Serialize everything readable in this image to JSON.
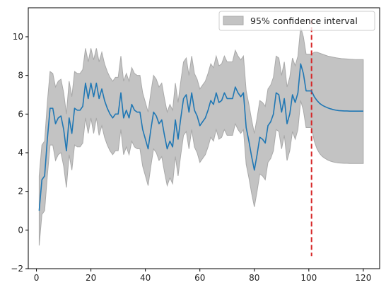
{
  "chart_data": {
    "type": "line",
    "title": "",
    "xlabel": "",
    "ylabel": "",
    "xlim": [
      -3,
      126
    ],
    "ylim": [
      -2,
      11.5
    ],
    "xticks": [
      0,
      20,
      40,
      60,
      80,
      100,
      120
    ],
    "yticks": [
      -2,
      0,
      2,
      4,
      6,
      8,
      10
    ],
    "grid": false,
    "legend_position": "top-right",
    "legend": [
      "95% confidence interval"
    ],
    "colors": {
      "series": "#1f77b4",
      "band": "#c3c3c3",
      "band_edge": "#a9a9a9",
      "vline": "#d62728"
    },
    "series": [
      {
        "values": [
          [
            1,
            1.0
          ],
          [
            2,
            2.6
          ],
          [
            3,
            2.8
          ],
          [
            4,
            4.7
          ],
          [
            5,
            6.3
          ],
          [
            6,
            6.3
          ],
          [
            7,
            5.5
          ],
          [
            8,
            5.8
          ],
          [
            9,
            5.9
          ],
          [
            10,
            5.2
          ],
          [
            11,
            4.1
          ],
          [
            12,
            5.8
          ],
          [
            13,
            5.0
          ],
          [
            14,
            6.3
          ],
          [
            15,
            6.2
          ],
          [
            16,
            6.2
          ],
          [
            17,
            6.4
          ],
          [
            18,
            7.6
          ],
          [
            19,
            6.8
          ],
          [
            20,
            7.6
          ],
          [
            21,
            6.9
          ],
          [
            22,
            7.6
          ],
          [
            23,
            6.8
          ],
          [
            24,
            7.3
          ],
          [
            25,
            6.7
          ],
          [
            26,
            6.3
          ],
          [
            27,
            6.0
          ],
          [
            28,
            5.8
          ],
          [
            29,
            6.0
          ],
          [
            30,
            6.0
          ],
          [
            31,
            7.1
          ],
          [
            32,
            5.8
          ],
          [
            33,
            6.2
          ],
          [
            34,
            5.8
          ],
          [
            35,
            6.5
          ],
          [
            36,
            6.2
          ],
          [
            37,
            6.1
          ],
          [
            38,
            6.1
          ],
          [
            39,
            5.2
          ],
          [
            40,
            4.7
          ],
          [
            41,
            4.2
          ],
          [
            42,
            5.2
          ],
          [
            43,
            6.1
          ],
          [
            44,
            5.9
          ],
          [
            45,
            5.5
          ],
          [
            46,
            5.7
          ],
          [
            47,
            4.9
          ],
          [
            48,
            4.2
          ],
          [
            49,
            4.6
          ],
          [
            50,
            4.3
          ],
          [
            51,
            5.7
          ],
          [
            52,
            4.7
          ],
          [
            53,
            5.8
          ],
          [
            54,
            6.8
          ],
          [
            55,
            7.0
          ],
          [
            56,
            6.1
          ],
          [
            57,
            7.1
          ],
          [
            58,
            6.2
          ],
          [
            59,
            5.9
          ],
          [
            60,
            5.4
          ],
          [
            61,
            5.6
          ],
          [
            62,
            5.8
          ],
          [
            63,
            6.2
          ],
          [
            64,
            6.7
          ],
          [
            65,
            6.5
          ],
          [
            66,
            7.1
          ],
          [
            67,
            6.6
          ],
          [
            68,
            6.7
          ],
          [
            69,
            7.1
          ],
          [
            70,
            6.8
          ],
          [
            71,
            6.8
          ],
          [
            72,
            6.8
          ],
          [
            73,
            7.4
          ],
          [
            74,
            7.1
          ],
          [
            75,
            6.9
          ],
          [
            76,
            7.1
          ],
          [
            77,
            5.3
          ],
          [
            78,
            4.6
          ],
          [
            79,
            3.8
          ],
          [
            80,
            3.1
          ],
          [
            81,
            3.9
          ],
          [
            82,
            4.8
          ],
          [
            83,
            4.7
          ],
          [
            84,
            4.5
          ],
          [
            85,
            5.4
          ],
          [
            86,
            5.6
          ],
          [
            87,
            6.0
          ],
          [
            88,
            7.1
          ],
          [
            89,
            7.0
          ],
          [
            90,
            6.1
          ],
          [
            91,
            6.8
          ],
          [
            92,
            5.5
          ],
          [
            93,
            6.0
          ],
          [
            94,
            7.0
          ],
          [
            95,
            6.6
          ],
          [
            96,
            7.1
          ],
          [
            97,
            8.6
          ],
          [
            98,
            8.1
          ],
          [
            99,
            7.2
          ],
          [
            100,
            7.2
          ],
          [
            101,
            7.2
          ],
          [
            102,
            6.9
          ],
          [
            103,
            6.7
          ],
          [
            104,
            6.55
          ],
          [
            105,
            6.45
          ],
          [
            106,
            6.38
          ],
          [
            107,
            6.32
          ],
          [
            108,
            6.27
          ],
          [
            109,
            6.23
          ],
          [
            110,
            6.2
          ],
          [
            111,
            6.18
          ],
          [
            112,
            6.17
          ],
          [
            113,
            6.16
          ],
          [
            114,
            6.16
          ],
          [
            115,
            6.15
          ],
          [
            116,
            6.15
          ],
          [
            117,
            6.15
          ],
          [
            118,
            6.15
          ],
          [
            119,
            6.15
          ],
          [
            120,
            6.15
          ]
        ]
      }
    ],
    "confidence_interval": {
      "label": "95% confidence interval",
      "upper": [
        [
          1,
          2.8
        ],
        [
          2,
          4.4
        ],
        [
          3,
          4.6
        ],
        [
          4,
          6.6
        ],
        [
          5,
          8.2
        ],
        [
          6,
          8.1
        ],
        [
          7,
          7.4
        ],
        [
          8,
          7.7
        ],
        [
          9,
          7.8
        ],
        [
          10,
          7.1
        ],
        [
          11,
          6.0
        ],
        [
          12,
          7.7
        ],
        [
          13,
          6.9
        ],
        [
          14,
          8.2
        ],
        [
          15,
          8.1
        ],
        [
          16,
          8.1
        ],
        [
          17,
          8.3
        ],
        [
          18,
          9.4
        ],
        [
          19,
          8.7
        ],
        [
          20,
          9.4
        ],
        [
          21,
          8.8
        ],
        [
          22,
          9.4
        ],
        [
          23,
          8.7
        ],
        [
          24,
          9.2
        ],
        [
          25,
          8.6
        ],
        [
          26,
          8.2
        ],
        [
          27,
          7.9
        ],
        [
          28,
          7.7
        ],
        [
          29,
          7.9
        ],
        [
          30,
          7.9
        ],
        [
          31,
          9.0
        ],
        [
          32,
          7.7
        ],
        [
          33,
          8.1
        ],
        [
          34,
          7.7
        ],
        [
          35,
          8.4
        ],
        [
          36,
          8.1
        ],
        [
          37,
          8.0
        ],
        [
          38,
          8.0
        ],
        [
          39,
          7.1
        ],
        [
          40,
          6.6
        ],
        [
          41,
          6.1
        ],
        [
          42,
          7.1
        ],
        [
          43,
          8.0
        ],
        [
          44,
          7.8
        ],
        [
          45,
          7.4
        ],
        [
          46,
          7.6
        ],
        [
          47,
          6.8
        ],
        [
          48,
          6.1
        ],
        [
          49,
          6.5
        ],
        [
          50,
          6.2
        ],
        [
          51,
          7.6
        ],
        [
          52,
          6.6
        ],
        [
          53,
          7.7
        ],
        [
          54,
          8.7
        ],
        [
          55,
          8.9
        ],
        [
          56,
          8.0
        ],
        [
          57,
          9.0
        ],
        [
          58,
          8.1
        ],
        [
          59,
          7.8
        ],
        [
          60,
          7.3
        ],
        [
          61,
          7.5
        ],
        [
          62,
          7.7
        ],
        [
          63,
          8.1
        ],
        [
          64,
          8.6
        ],
        [
          65,
          8.4
        ],
        [
          66,
          9.0
        ],
        [
          67,
          8.5
        ],
        [
          68,
          8.6
        ],
        [
          69,
          9.0
        ],
        [
          70,
          8.7
        ],
        [
          71,
          8.7
        ],
        [
          72,
          8.7
        ],
        [
          73,
          9.3
        ],
        [
          74,
          9.0
        ],
        [
          75,
          8.8
        ],
        [
          76,
          9.0
        ],
        [
          77,
          7.2
        ],
        [
          78,
          6.5
        ],
        [
          79,
          5.7
        ],
        [
          80,
          5.0
        ],
        [
          81,
          5.8
        ],
        [
          82,
          6.7
        ],
        [
          83,
          6.6
        ],
        [
          84,
          6.4
        ],
        [
          85,
          7.3
        ],
        [
          86,
          7.5
        ],
        [
          87,
          7.9
        ],
        [
          88,
          9.0
        ],
        [
          89,
          8.9
        ],
        [
          90,
          8.0
        ],
        [
          91,
          8.7
        ],
        [
          92,
          7.4
        ],
        [
          93,
          7.9
        ],
        [
          94,
          8.9
        ],
        [
          95,
          8.5
        ],
        [
          96,
          9.0
        ],
        [
          97,
          10.5
        ],
        [
          98,
          10.0
        ],
        [
          99,
          9.1
        ],
        [
          100,
          9.1
        ],
        [
          101,
          9.1
        ],
        [
          102,
          9.2
        ],
        [
          103,
          9.2
        ],
        [
          104,
          9.15
        ],
        [
          105,
          9.1
        ],
        [
          106,
          9.05
        ],
        [
          107,
          9.0
        ],
        [
          108,
          8.97
        ],
        [
          109,
          8.94
        ],
        [
          110,
          8.91
        ],
        [
          111,
          8.89
        ],
        [
          112,
          8.87
        ],
        [
          113,
          8.86
        ],
        [
          114,
          8.85
        ],
        [
          115,
          8.84
        ],
        [
          116,
          8.83
        ],
        [
          117,
          8.82
        ],
        [
          118,
          8.82
        ],
        [
          119,
          8.82
        ],
        [
          120,
          8.82
        ]
      ],
      "lower": [
        [
          1,
          -0.8
        ],
        [
          2,
          0.8
        ],
        [
          3,
          1.0
        ],
        [
          4,
          2.8
        ],
        [
          5,
          4.4
        ],
        [
          6,
          4.4
        ],
        [
          7,
          3.6
        ],
        [
          8,
          3.9
        ],
        [
          9,
          4.0
        ],
        [
          10,
          3.3
        ],
        [
          11,
          2.2
        ],
        [
          12,
          3.9
        ],
        [
          13,
          3.1
        ],
        [
          14,
          4.4
        ],
        [
          15,
          4.3
        ],
        [
          16,
          4.3
        ],
        [
          17,
          4.5
        ],
        [
          18,
          5.8
        ],
        [
          19,
          5.0
        ],
        [
          20,
          5.8
        ],
        [
          21,
          5.0
        ],
        [
          22,
          5.8
        ],
        [
          23,
          4.9
        ],
        [
          24,
          5.4
        ],
        [
          25,
          4.8
        ],
        [
          26,
          4.4
        ],
        [
          27,
          4.1
        ],
        [
          28,
          3.9
        ],
        [
          29,
          4.1
        ],
        [
          30,
          4.1
        ],
        [
          31,
          5.2
        ],
        [
          32,
          3.9
        ],
        [
          33,
          4.3
        ],
        [
          34,
          3.9
        ],
        [
          35,
          4.6
        ],
        [
          36,
          4.3
        ],
        [
          37,
          4.2
        ],
        [
          38,
          4.2
        ],
        [
          39,
          3.3
        ],
        [
          40,
          2.8
        ],
        [
          41,
          2.3
        ],
        [
          42,
          3.3
        ],
        [
          43,
          4.2
        ],
        [
          44,
          4.0
        ],
        [
          45,
          3.6
        ],
        [
          46,
          3.8
        ],
        [
          47,
          3.0
        ],
        [
          48,
          2.3
        ],
        [
          49,
          2.7
        ],
        [
          50,
          2.4
        ],
        [
          51,
          3.8
        ],
        [
          52,
          2.8
        ],
        [
          53,
          3.9
        ],
        [
          54,
          4.9
        ],
        [
          55,
          5.1
        ],
        [
          56,
          4.2
        ],
        [
          57,
          5.2
        ],
        [
          58,
          4.3
        ],
        [
          59,
          4.0
        ],
        [
          60,
          3.5
        ],
        [
          61,
          3.7
        ],
        [
          62,
          3.9
        ],
        [
          63,
          4.3
        ],
        [
          64,
          4.8
        ],
        [
          65,
          4.6
        ],
        [
          66,
          5.2
        ],
        [
          67,
          4.7
        ],
        [
          68,
          4.8
        ],
        [
          69,
          5.2
        ],
        [
          70,
          4.9
        ],
        [
          71,
          4.9
        ],
        [
          72,
          4.9
        ],
        [
          73,
          5.5
        ],
        [
          74,
          5.2
        ],
        [
          75,
          5.0
        ],
        [
          76,
          5.2
        ],
        [
          77,
          3.4
        ],
        [
          78,
          2.7
        ],
        [
          79,
          1.9
        ],
        [
          80,
          1.2
        ],
        [
          81,
          2.0
        ],
        [
          82,
          2.9
        ],
        [
          83,
          2.8
        ],
        [
          84,
          2.6
        ],
        [
          85,
          3.5
        ],
        [
          86,
          3.7
        ],
        [
          87,
          4.1
        ],
        [
          88,
          5.2
        ],
        [
          89,
          5.1
        ],
        [
          90,
          4.2
        ],
        [
          91,
          4.9
        ],
        [
          92,
          3.6
        ],
        [
          93,
          4.1
        ],
        [
          94,
          5.1
        ],
        [
          95,
          4.7
        ],
        [
          96,
          5.2
        ],
        [
          97,
          6.7
        ],
        [
          98,
          6.2
        ],
        [
          99,
          5.3
        ],
        [
          100,
          5.3
        ],
        [
          101,
          5.3
        ],
        [
          102,
          4.6
        ],
        [
          103,
          4.2
        ],
        [
          104,
          3.95
        ],
        [
          105,
          3.8
        ],
        [
          106,
          3.7
        ],
        [
          107,
          3.62
        ],
        [
          108,
          3.56
        ],
        [
          109,
          3.52
        ],
        [
          110,
          3.49
        ],
        [
          111,
          3.47
        ],
        [
          112,
          3.46
        ],
        [
          113,
          3.45
        ],
        [
          114,
          3.45
        ],
        [
          115,
          3.44
        ],
        [
          116,
          3.44
        ],
        [
          117,
          3.44
        ],
        [
          118,
          3.44
        ],
        [
          119,
          3.44
        ],
        [
          120,
          3.44
        ]
      ]
    },
    "vline": {
      "x": 101,
      "ymin": -1.35,
      "ymax": 10.9,
      "style": "dashed"
    }
  }
}
